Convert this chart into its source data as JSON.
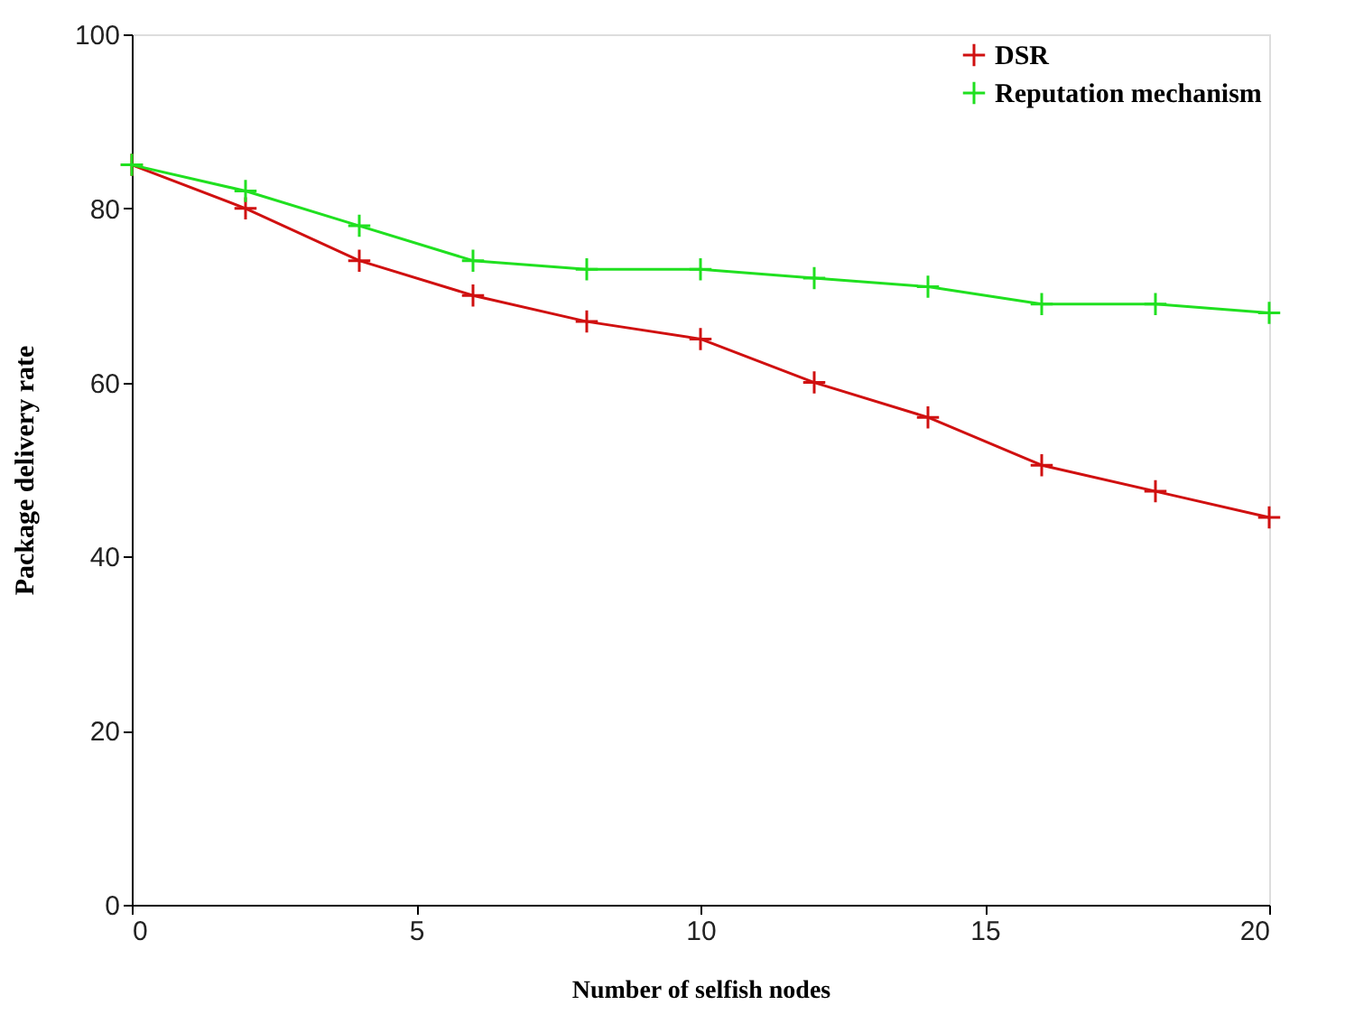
{
  "chart_data": {
    "type": "line",
    "xlabel": "Number of selfish nodes",
    "ylabel": "Package delivery rate",
    "x": [
      0,
      2,
      4,
      6,
      8,
      10,
      12,
      14,
      16,
      18,
      20
    ],
    "series": [
      {
        "name": "DSR",
        "color": "#d01010",
        "marker": "cross",
        "values": [
          85,
          80,
          74,
          70,
          67,
          65,
          60,
          56,
          50.5,
          47.5,
          44.5
        ]
      },
      {
        "name": "Reputation mechanism",
        "color": "#20e020",
        "marker": "cross",
        "values": [
          85,
          82,
          78,
          74,
          73,
          73,
          72,
          71,
          69,
          69,
          68
        ]
      }
    ],
    "xlim": [
      0,
      20
    ],
    "xticks": [
      0,
      5,
      10,
      15,
      20
    ],
    "ylim": [
      0,
      100
    ],
    "yticks": [
      0,
      20,
      40,
      60,
      80,
      100
    ],
    "grid": false,
    "legend": "top right",
    "line_style": "solid"
  }
}
